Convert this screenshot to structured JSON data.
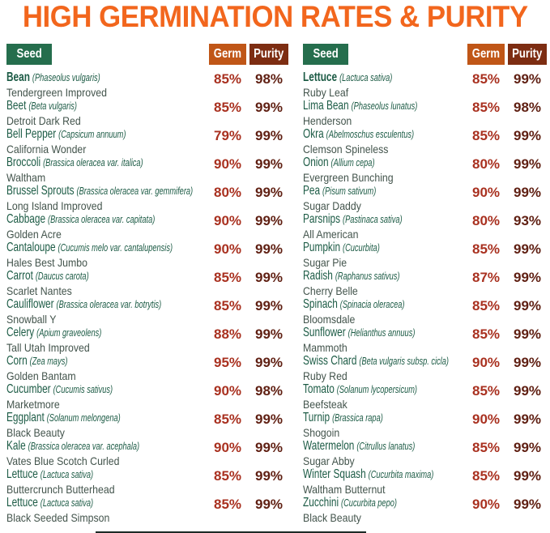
{
  "title": "HIGH GERMINATION RATES & PURITY",
  "columns": {
    "seed": "Seed",
    "germ": "Germ",
    "purity": "Purity"
  },
  "colors": {
    "title": "#f2661d",
    "seed_badge": "#256e4d",
    "germ_badge": "#c05617",
    "purity_badge": "#7d2d12",
    "seed_name_text": "#1c5b45",
    "variety_text": "#43544c",
    "germ_value_text": "#a93120",
    "purity_value_text": "#602013"
  },
  "tables": [
    {
      "rows": [
        {
          "name": "Bean",
          "latin": "(Phaseolus vulgaris)",
          "variety": "Tendergreen Improved",
          "germ": "85%",
          "purity": "98%",
          "bold": true
        },
        {
          "name": "Beet",
          "latin": "(Beta vulgaris)",
          "variety": "Detroit Dark Red",
          "germ": "85%",
          "purity": "99%"
        },
        {
          "name": "Bell Pepper",
          "latin": "(Capsicum annuum)",
          "variety": "California Wonder",
          "germ": "79%",
          "purity": "99%"
        },
        {
          "name": "Broccoli",
          "latin": "(Brassica oleracea var. italica)",
          "variety": "Waltham",
          "germ": "90%",
          "purity": "99%"
        },
        {
          "name": "Brussel Sprouts",
          "latin": "(Brassica oleracea var. gemmifera)",
          "variety": "Long Island Improved",
          "germ": "80%",
          "purity": "99%"
        },
        {
          "name": "Cabbage",
          "latin": "(Brassica oleracea var. capitata)",
          "variety": "Golden Acre",
          "germ": "90%",
          "purity": "99%"
        },
        {
          "name": "Cantaloupe",
          "latin": "(Cucumis melo var. cantalupensis)",
          "variety": "Hales Best Jumbo",
          "germ": "90%",
          "purity": "99%"
        },
        {
          "name": "Carrot",
          "latin": "(Daucus carota)",
          "variety": "Scarlet Nantes",
          "germ": "85%",
          "purity": "99%"
        },
        {
          "name": "Cauliflower",
          "latin": "(Brassica oleracea var. botrytis)",
          "variety": "Snowball Y",
          "germ": "85%",
          "purity": "99%"
        },
        {
          "name": "Celery",
          "latin": "(Apium graveolens)",
          "variety": "Tall Utah Improved",
          "germ": "88%",
          "purity": "99%"
        },
        {
          "name": "Corn",
          "latin": "(Zea mays)",
          "variety": "Golden Bantam",
          "germ": "95%",
          "purity": "99%"
        },
        {
          "name": "Cucumber",
          "latin": "(Cucumis sativus)",
          "variety": "Marketmore",
          "germ": "90%",
          "purity": "98%"
        },
        {
          "name": "Eggplant",
          "latin": "(Solanum melongena)",
          "variety": "Black Beauty",
          "germ": "85%",
          "purity": "99%"
        },
        {
          "name": "Kale",
          "latin": "(Brassica oleracea var. acephala)",
          "variety": "Vates Blue Scotch Curled",
          "germ": "90%",
          "purity": "99%"
        },
        {
          "name": "Lettuce",
          "latin": "(Lactuca sativa)",
          "variety": "Buttercrunch Butterhead",
          "germ": "85%",
          "purity": "99%"
        },
        {
          "name": "Lettuce",
          "latin": "(Lactuca sativa)",
          "variety": "Black Seeded Simpson",
          "germ": "85%",
          "purity": "99%"
        }
      ]
    },
    {
      "rows": [
        {
          "name": "Lettuce",
          "latin": "(Lactuca sativa)",
          "variety": "Ruby Leaf",
          "germ": "85%",
          "purity": "99%",
          "bold": true
        },
        {
          "name": "Lima Bean",
          "latin": "(Phaseolus lunatus)",
          "variety": "Henderson",
          "germ": "85%",
          "purity": "98%"
        },
        {
          "name": "Okra",
          "latin": "(Abelmoschus esculentus)",
          "variety": "Clemson Spineless",
          "germ": "85%",
          "purity": "99%"
        },
        {
          "name": "Onion",
          "latin": "(Allium cepa)",
          "variety": "Evergreen Bunching",
          "germ": "80%",
          "purity": "99%"
        },
        {
          "name": "Pea",
          "latin": "(Pisum sativum)",
          "variety": "Sugar Daddy",
          "germ": "90%",
          "purity": "99%"
        },
        {
          "name": "Parsnips",
          "latin": "(Pastinaca sativa)",
          "variety": "All American",
          "germ": "80%",
          "purity": "93%"
        },
        {
          "name": "Pumpkin",
          "latin": "(Cucurbita)",
          "variety": "Sugar Pie",
          "germ": "85%",
          "purity": "99%"
        },
        {
          "name": "Radish",
          "latin": "(Raphanus sativus)",
          "variety": "Cherry Belle",
          "germ": "87%",
          "purity": "99%"
        },
        {
          "name": "Spinach",
          "latin": "(Spinacia oleracea)",
          "variety": "Bloomsdale",
          "germ": "85%",
          "purity": "99%"
        },
        {
          "name": "Sunflower",
          "latin": "(Helianthus annuus)",
          "variety": "Mammoth",
          "germ": "85%",
          "purity": "99%"
        },
        {
          "name": "Swiss Chard",
          "latin": "(Beta vulgaris subsp. cicla)",
          "variety": "Ruby Red",
          "germ": "90%",
          "purity": "99%"
        },
        {
          "name": "Tomato",
          "latin": "(Solanum lycopersicum)",
          "variety": "Beefsteak",
          "germ": "85%",
          "purity": "99%"
        },
        {
          "name": "Turnip",
          "latin": "(Brassica rapa)",
          "variety": "Shogoin",
          "germ": "90%",
          "purity": "99%"
        },
        {
          "name": "Watermelon",
          "latin": "(Citrullus lanatus)",
          "variety": "Sugar Abby",
          "germ": "85%",
          "purity": "99%"
        },
        {
          "name": "Winter Squash",
          "latin": "(Cucurbita maxima)",
          "variety": "Waltham Butternut",
          "germ": "85%",
          "purity": "99%"
        },
        {
          "name": "Zucchini",
          "latin": "(Cucurbita pepo)",
          "variety": "Black Beauty",
          "germ": "90%",
          "purity": "99%"
        }
      ]
    }
  ]
}
